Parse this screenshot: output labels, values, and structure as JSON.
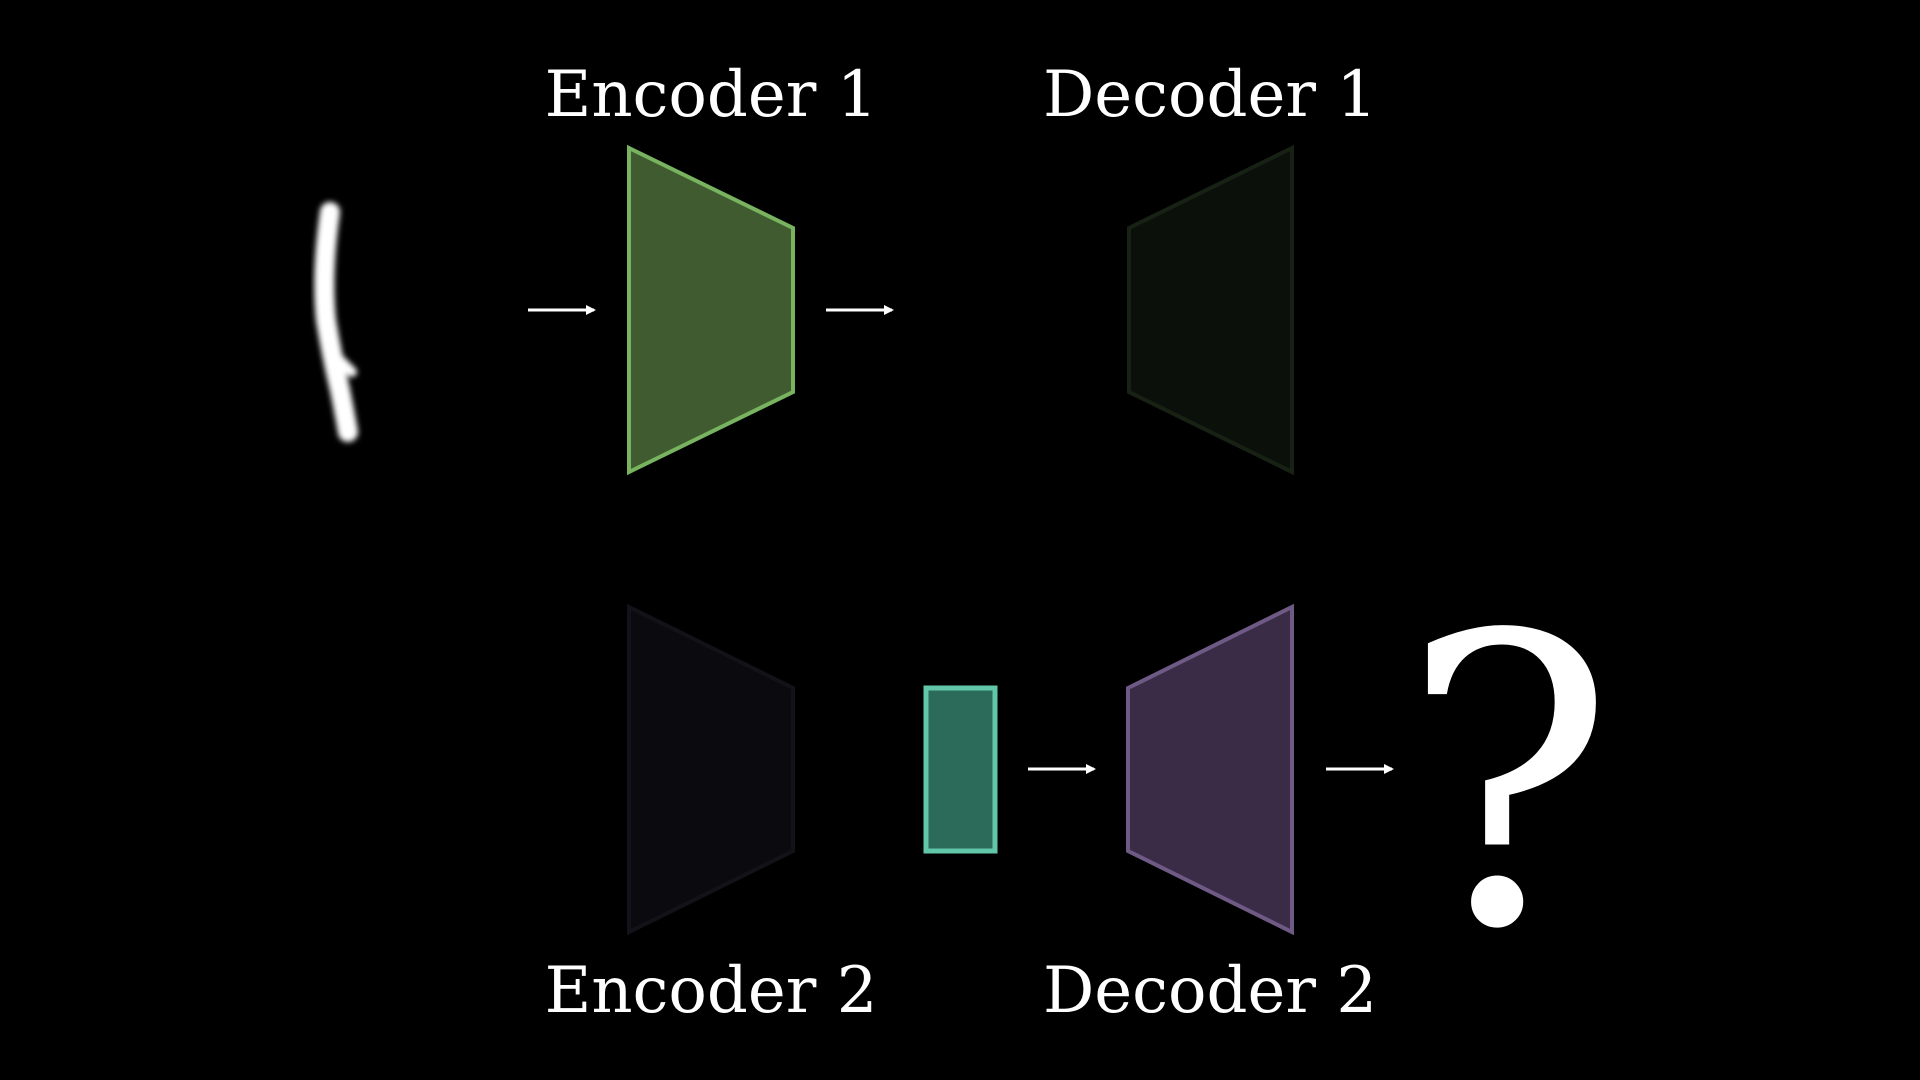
{
  "labels": {
    "encoder1": "Encoder 1",
    "decoder1": "Decoder 1",
    "encoder2": "Encoder 2",
    "decoder2": "Decoder 2"
  },
  "output_symbol": "?",
  "colors": {
    "background": "#000000",
    "encoder1_fill": "#3f5b2f",
    "encoder1_stroke": "#78b35f",
    "decoder1_fill": "#0b110a",
    "decoder1_stroke": "#172114",
    "encoder2_fill": "#0b0a0e",
    "encoder2_stroke": "#141219",
    "decoder2_fill": "#3a2b46",
    "decoder2_stroke": "#6e5a85",
    "latent_fill": "#2c6a5a",
    "latent_stroke": "#62c7a8",
    "arrow": "#ffffff",
    "text": "#ffffff"
  }
}
